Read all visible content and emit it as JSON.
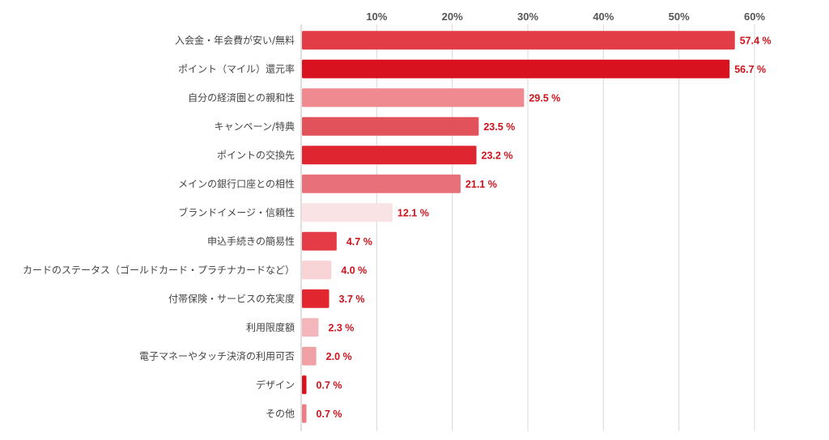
{
  "chart_data": {
    "type": "bar",
    "orientation": "horizontal",
    "title": "",
    "xlabel": "",
    "ylabel": "",
    "xlim": [
      0,
      60
    ],
    "x_ticks": [
      10,
      20,
      30,
      40,
      50,
      60
    ],
    "x_tick_suffix": "%",
    "grid": true,
    "legend": "none",
    "categories": [
      "入会金・年会費が安い/無料",
      "ポイント（マイル）還元率",
      "自分の経済圏との親和性",
      "キャンペーン/特典",
      "ポイントの交換先",
      "メインの銀行口座との相性",
      "ブランドイメージ・信頼性",
      "申込手続きの簡易性",
      "カードのステータス（ゴールドカード・プラチナカードなど）",
      "付帯保険・サービスの充実度",
      "利用限度額",
      "電子マネーやタッチ決済の利用可否",
      "デザイン",
      "その他"
    ],
    "values": [
      57.4,
      56.7,
      29.5,
      23.5,
      23.2,
      21.1,
      12.1,
      4.7,
      4.0,
      3.7,
      2.3,
      2.0,
      0.7,
      0.7
    ],
    "value_suffix": " %",
    "bar_colors": [
      "#e23c47",
      "#d9121f",
      "#ee8a90",
      "#e2525b",
      "#df2530",
      "#e8707a",
      "#f9e3e4",
      "#e53b46",
      "#f7d3d5",
      "#e1262f",
      "#f3b7bb",
      "#f0a1a6",
      "#d9121f",
      "#ec7d84"
    ],
    "label_color": "#d0121b"
  }
}
